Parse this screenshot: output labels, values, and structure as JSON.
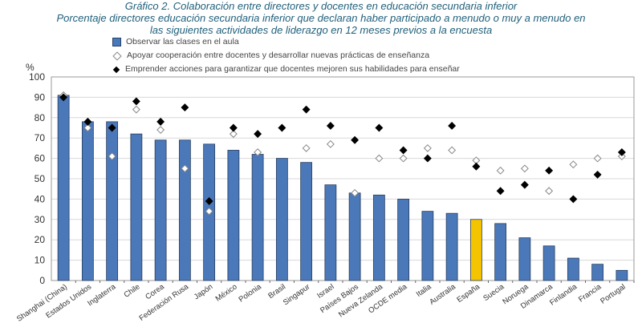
{
  "title_lines": [
    "Gráfico 2. Colaboración entre directores y docentes en educación secundaria inferior",
    "Porcentaje directores educación secundaria inferior que declaran haber participado a menudo o muy a menudo en",
    "las siguientes actividades de liderazgo en 12 meses previos a la encuesta"
  ],
  "chart_data": {
    "type": "bar",
    "ylabel": "%",
    "ylim": [
      0,
      100
    ],
    "yticks": [
      0,
      10,
      20,
      30,
      40,
      50,
      60,
      70,
      80,
      90,
      100
    ],
    "grid": true,
    "legend_position": "top",
    "categories": [
      "Shanghai (China)",
      "Estados Unidos",
      "Inglaterra",
      "Chile",
      "Corea",
      "Federación Rusa",
      "Japón",
      "México",
      "Polonia",
      "Brasil",
      "Singapur",
      "Israel",
      "Países Bajos",
      "Nueva Zelanda",
      "OCDE media",
      "Italia",
      "Australia",
      "España",
      "Suecia",
      "Noruega",
      "Dinamarca",
      "Finlandia",
      "Francia",
      "Portugal"
    ],
    "highlight_category": "España",
    "colors": {
      "bar": "#4a78b8",
      "highlight": "#f5c400",
      "hollow": "#ffffff",
      "solid": "#000000"
    },
    "series": [
      {
        "name": "Observar las clases en el aula",
        "kind": "bar",
        "values": [
          91,
          78,
          78,
          72,
          69,
          69,
          67,
          64,
          62,
          60,
          58,
          47,
          43,
          42,
          40,
          34,
          33,
          30,
          28,
          21,
          17,
          11,
          8,
          5
        ]
      },
      {
        "name": "Apoyar cooperación entre docentes y desarrollar nuevas prácticas de enseñanza",
        "kind": "hollow-diamond",
        "values": [
          91,
          75,
          61,
          84,
          74,
          55,
          34,
          72,
          63,
          null,
          65,
          67,
          43,
          60,
          60,
          65,
          64,
          59,
          54,
          55,
          44,
          57,
          60,
          61
        ]
      },
      {
        "name": "Emprender acciones para garantizar que docentes mejoren sus habilidades para enseñar",
        "kind": "solid-diamond",
        "values": [
          90,
          78,
          75,
          88,
          78,
          85,
          39,
          75,
          72,
          75,
          84,
          76,
          69,
          75,
          64,
          60,
          76,
          56,
          44,
          47,
          54,
          40,
          52,
          63
        ]
      }
    ]
  }
}
